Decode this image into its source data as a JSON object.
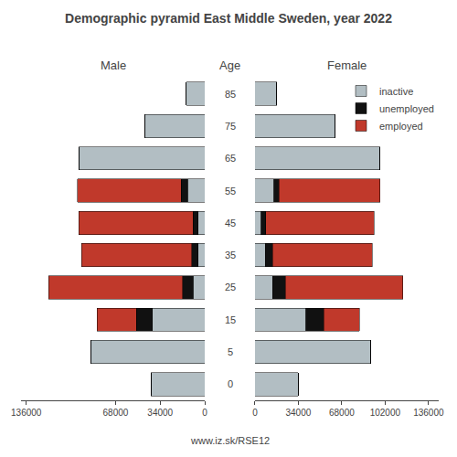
{
  "chart_data": [
    {
      "type": "bar",
      "orientation": "horizontal",
      "stacked": true,
      "grid": false,
      "title": "Male",
      "ylabel": "Age",
      "annotations": [
        {
          "text": "Demographic pyramid East Middle Sweden, year 2022"
        },
        {
          "text": "www.iz.sk/RSE12"
        }
      ],
      "categories": [
        "85",
        "75",
        "65",
        "55",
        "45",
        "35",
        "25",
        "15",
        "5",
        "0"
      ],
      "series": [
        {
          "name": "inactive",
          "color": "#b2bec3",
          "values": [
            14000,
            46000,
            96000,
            13000,
            5000,
            5000,
            9000,
            40000,
            87000,
            41000
          ]
        },
        {
          "name": "unemployed",
          "color": "#111111",
          "values": [
            0,
            0,
            0,
            5000,
            4000,
            5000,
            8000,
            12000,
            0,
            0
          ]
        },
        {
          "name": "employed",
          "color": "#c0392b",
          "values": [
            0,
            0,
            0,
            79000,
            87000,
            84000,
            102000,
            30000,
            0,
            0
          ]
        }
      ],
      "xlim": [
        140000,
        0
      ],
      "xticks": [
        136000,
        68000,
        34000,
        0
      ]
    },
    {
      "type": "bar",
      "orientation": "horizontal",
      "stacked": true,
      "grid": false,
      "title": "Female",
      "legend": "upper right",
      "categories": [
        "85",
        "75",
        "65",
        "55",
        "45",
        "35",
        "25",
        "15",
        "5",
        "0"
      ],
      "series": [
        {
          "name": "inactive",
          "color": "#b2bec3",
          "values": [
            17000,
            63000,
            98000,
            15000,
            5000,
            8000,
            14000,
            40000,
            91000,
            34000
          ]
        },
        {
          "name": "unemployed",
          "color": "#111111",
          "values": [
            0,
            0,
            0,
            4000,
            3500,
            6000,
            10000,
            14000,
            0,
            0
          ]
        },
        {
          "name": "employed",
          "color": "#c0392b",
          "values": [
            0,
            0,
            0,
            79000,
            85000,
            78000,
            92000,
            28000,
            0,
            0
          ]
        }
      ],
      "xlim": [
        0,
        144000
      ],
      "xticks": [
        0,
        34000,
        68000,
        102000,
        136000
      ]
    }
  ]
}
